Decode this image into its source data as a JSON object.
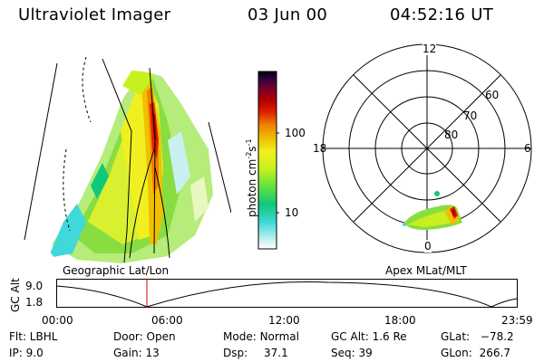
{
  "header": {
    "instrument": "Ultraviolet Imager",
    "date": "03 Jun 00",
    "time": "04:52:16 UT"
  },
  "colorbar": {
    "unit_label": "photon cm",
    "unit_exp1": "-2",
    "unit_s": "s",
    "unit_exp2": "-1",
    "tick_high": "100",
    "tick_low": "10",
    "colors": [
      "#ffffff",
      "#c8f0f0",
      "#40d8d8",
      "#10c878",
      "#60e040",
      "#c8f020",
      "#f0f020",
      "#f0c000",
      "#f08000",
      "#e02000",
      "#b00000",
      "#700030",
      "#300040",
      "#000000"
    ]
  },
  "polar_plot": {
    "mlt_labels": {
      "top": "12",
      "left": "18",
      "right": "6",
      "bottom": "0"
    },
    "lat_labels": [
      "60",
      "70",
      "80"
    ]
  },
  "left_panel_label": "Geographic Lat/Lon",
  "right_panel_label": "Apex MLat/MLT",
  "altitude_plot": {
    "ylabel": "GC Alt",
    "y_high": "9.0",
    "y_low": "1.8",
    "x_ticks": [
      "00:00",
      "06:00",
      "12:00",
      "18:00",
      "23:59"
    ],
    "marker_color": "#cc0000"
  },
  "info": {
    "flt": "Flt: LBHL",
    "ip": "IP:  9.0",
    "door": "Door: Open",
    "gain": "Gain: 13",
    "mode_label": "Mode:",
    "mode_value": "Normal",
    "dsp_label": "Dsp:",
    "dsp_value": "37.1",
    "gcalt": "GC Alt: 1.6 Re",
    "seq": "Seq: 39",
    "glat_label": "GLat:",
    "glat_value": "−78.2",
    "glon_label": "GLon:",
    "glon_value": "266.7"
  }
}
